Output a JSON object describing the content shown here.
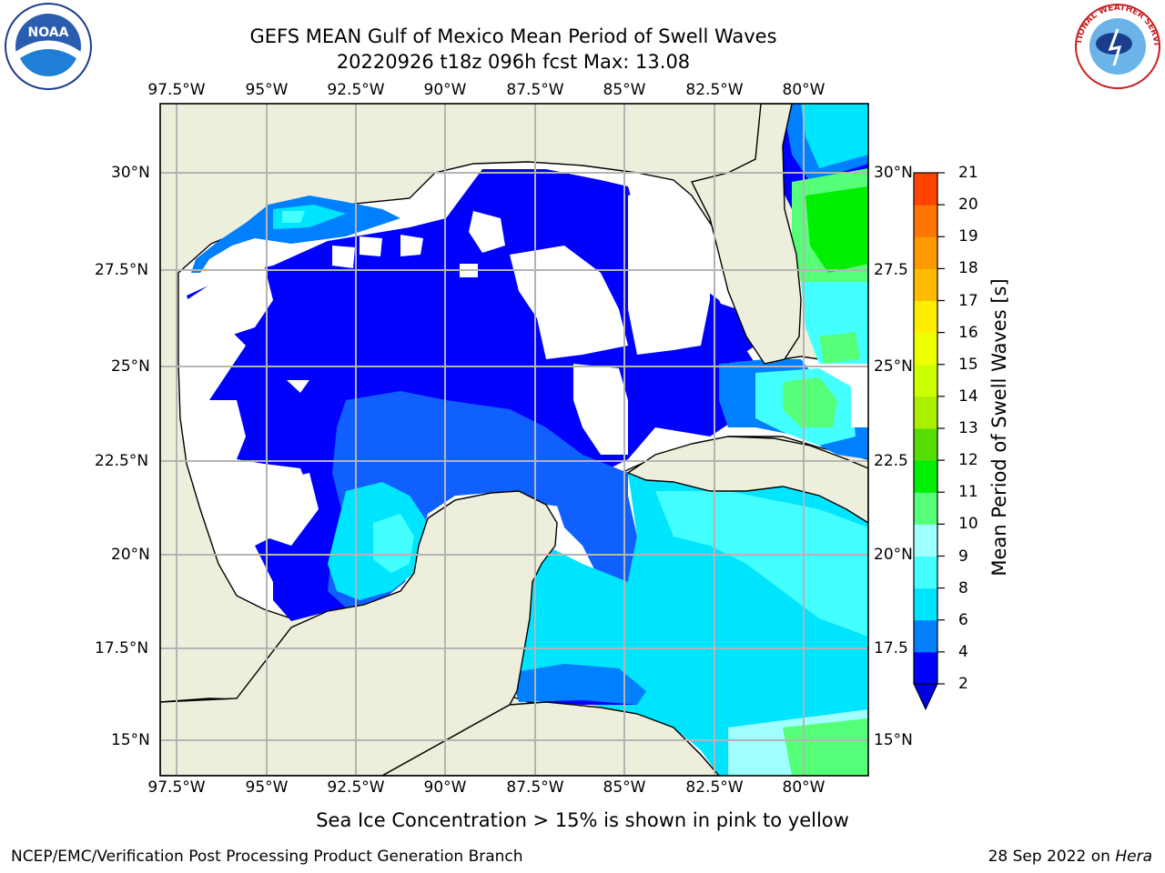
{
  "header": {
    "title_line1": "GEFS MEAN Gulf of Mexico Mean Period of Swell Waves",
    "title_line2": "20220926 t18z 096h fcst   Max: 13.08"
  },
  "map": {
    "lon_labels": [
      "97.5°W",
      "95°W",
      "92.5°W",
      "90°W",
      "87.5°W",
      "85°W",
      "82.5°W",
      "80°W"
    ],
    "lat_labels_left": [
      "30°N",
      "27.5°N",
      "25°N",
      "22.5°N",
      "20°N",
      "17.5°N",
      "15°N"
    ],
    "lat_labels_right": [
      "30°N",
      "27.5",
      "25°N",
      "22.5",
      "20°N",
      "17.5",
      "15°N"
    ],
    "colors": {
      "land": "#eeeedc",
      "ocean_blank": "#ffffff",
      "grid": "#b4b4b4"
    }
  },
  "colorbar": {
    "label": "Mean Period of Swell Waves [s]",
    "ticks": [
      "2",
      "4",
      "6",
      "8",
      "9",
      "10",
      "11",
      "12",
      "13",
      "14",
      "15",
      "16",
      "17",
      "18",
      "19",
      "20",
      "21"
    ],
    "colors": [
      "#0000ff",
      "#0080ff",
      "#00e5ff",
      "#44ffff",
      "#a0ffff",
      "#55ff77",
      "#00ee00",
      "#55dd00",
      "#aaee00",
      "#ccff00",
      "#eeff00",
      "#ffee00",
      "#ffbb00",
      "#ff9900",
      "#ff7700",
      "#ff4400",
      "#ff1100"
    ],
    "under_color": "#0000dd"
  },
  "footer": {
    "ice_note": "Sea Ice Concentration > 15% is shown in pink to yellow",
    "branch": "NCEP/EMC/Verification Post Processing Product Generation Branch",
    "date": "28 Sep 2022 on",
    "host": "Hera"
  },
  "logos": {
    "left": "noaa-logo",
    "right": "nws-logo",
    "right_text": "NATIONAL WEATHER SERVICE"
  }
}
